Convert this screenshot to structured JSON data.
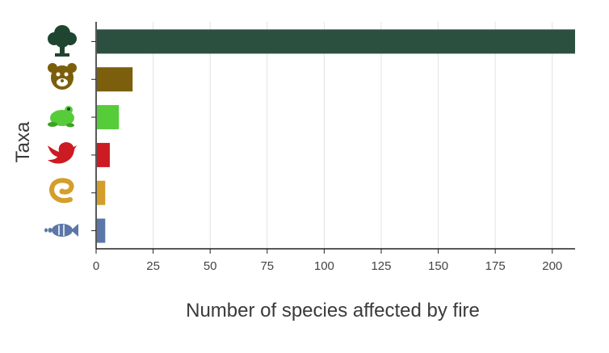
{
  "chart_data": {
    "type": "bar",
    "orientation": "horizontal",
    "categories": [
      "plants",
      "mammals",
      "amphibians",
      "birds",
      "reptiles",
      "fish"
    ],
    "category_icons": [
      "tree-icon",
      "mammal-face-icon",
      "frog-icon",
      "bird-icon",
      "snake-icon",
      "fish-icon"
    ],
    "values": [
      210,
      16,
      10,
      6,
      4,
      4
    ],
    "colors": [
      "#2c5040",
      "#7b5f0c",
      "#57cc3a",
      "#cc1b22",
      "#d49e2b",
      "#5c77a7"
    ],
    "xlabel": "Number of species affected by fire",
    "ylabel": "Taxa",
    "xlim": [
      0,
      210
    ],
    "xticks": [
      0,
      25,
      50,
      75,
      100,
      125,
      150,
      175,
      200
    ],
    "grid": "vertical"
  }
}
